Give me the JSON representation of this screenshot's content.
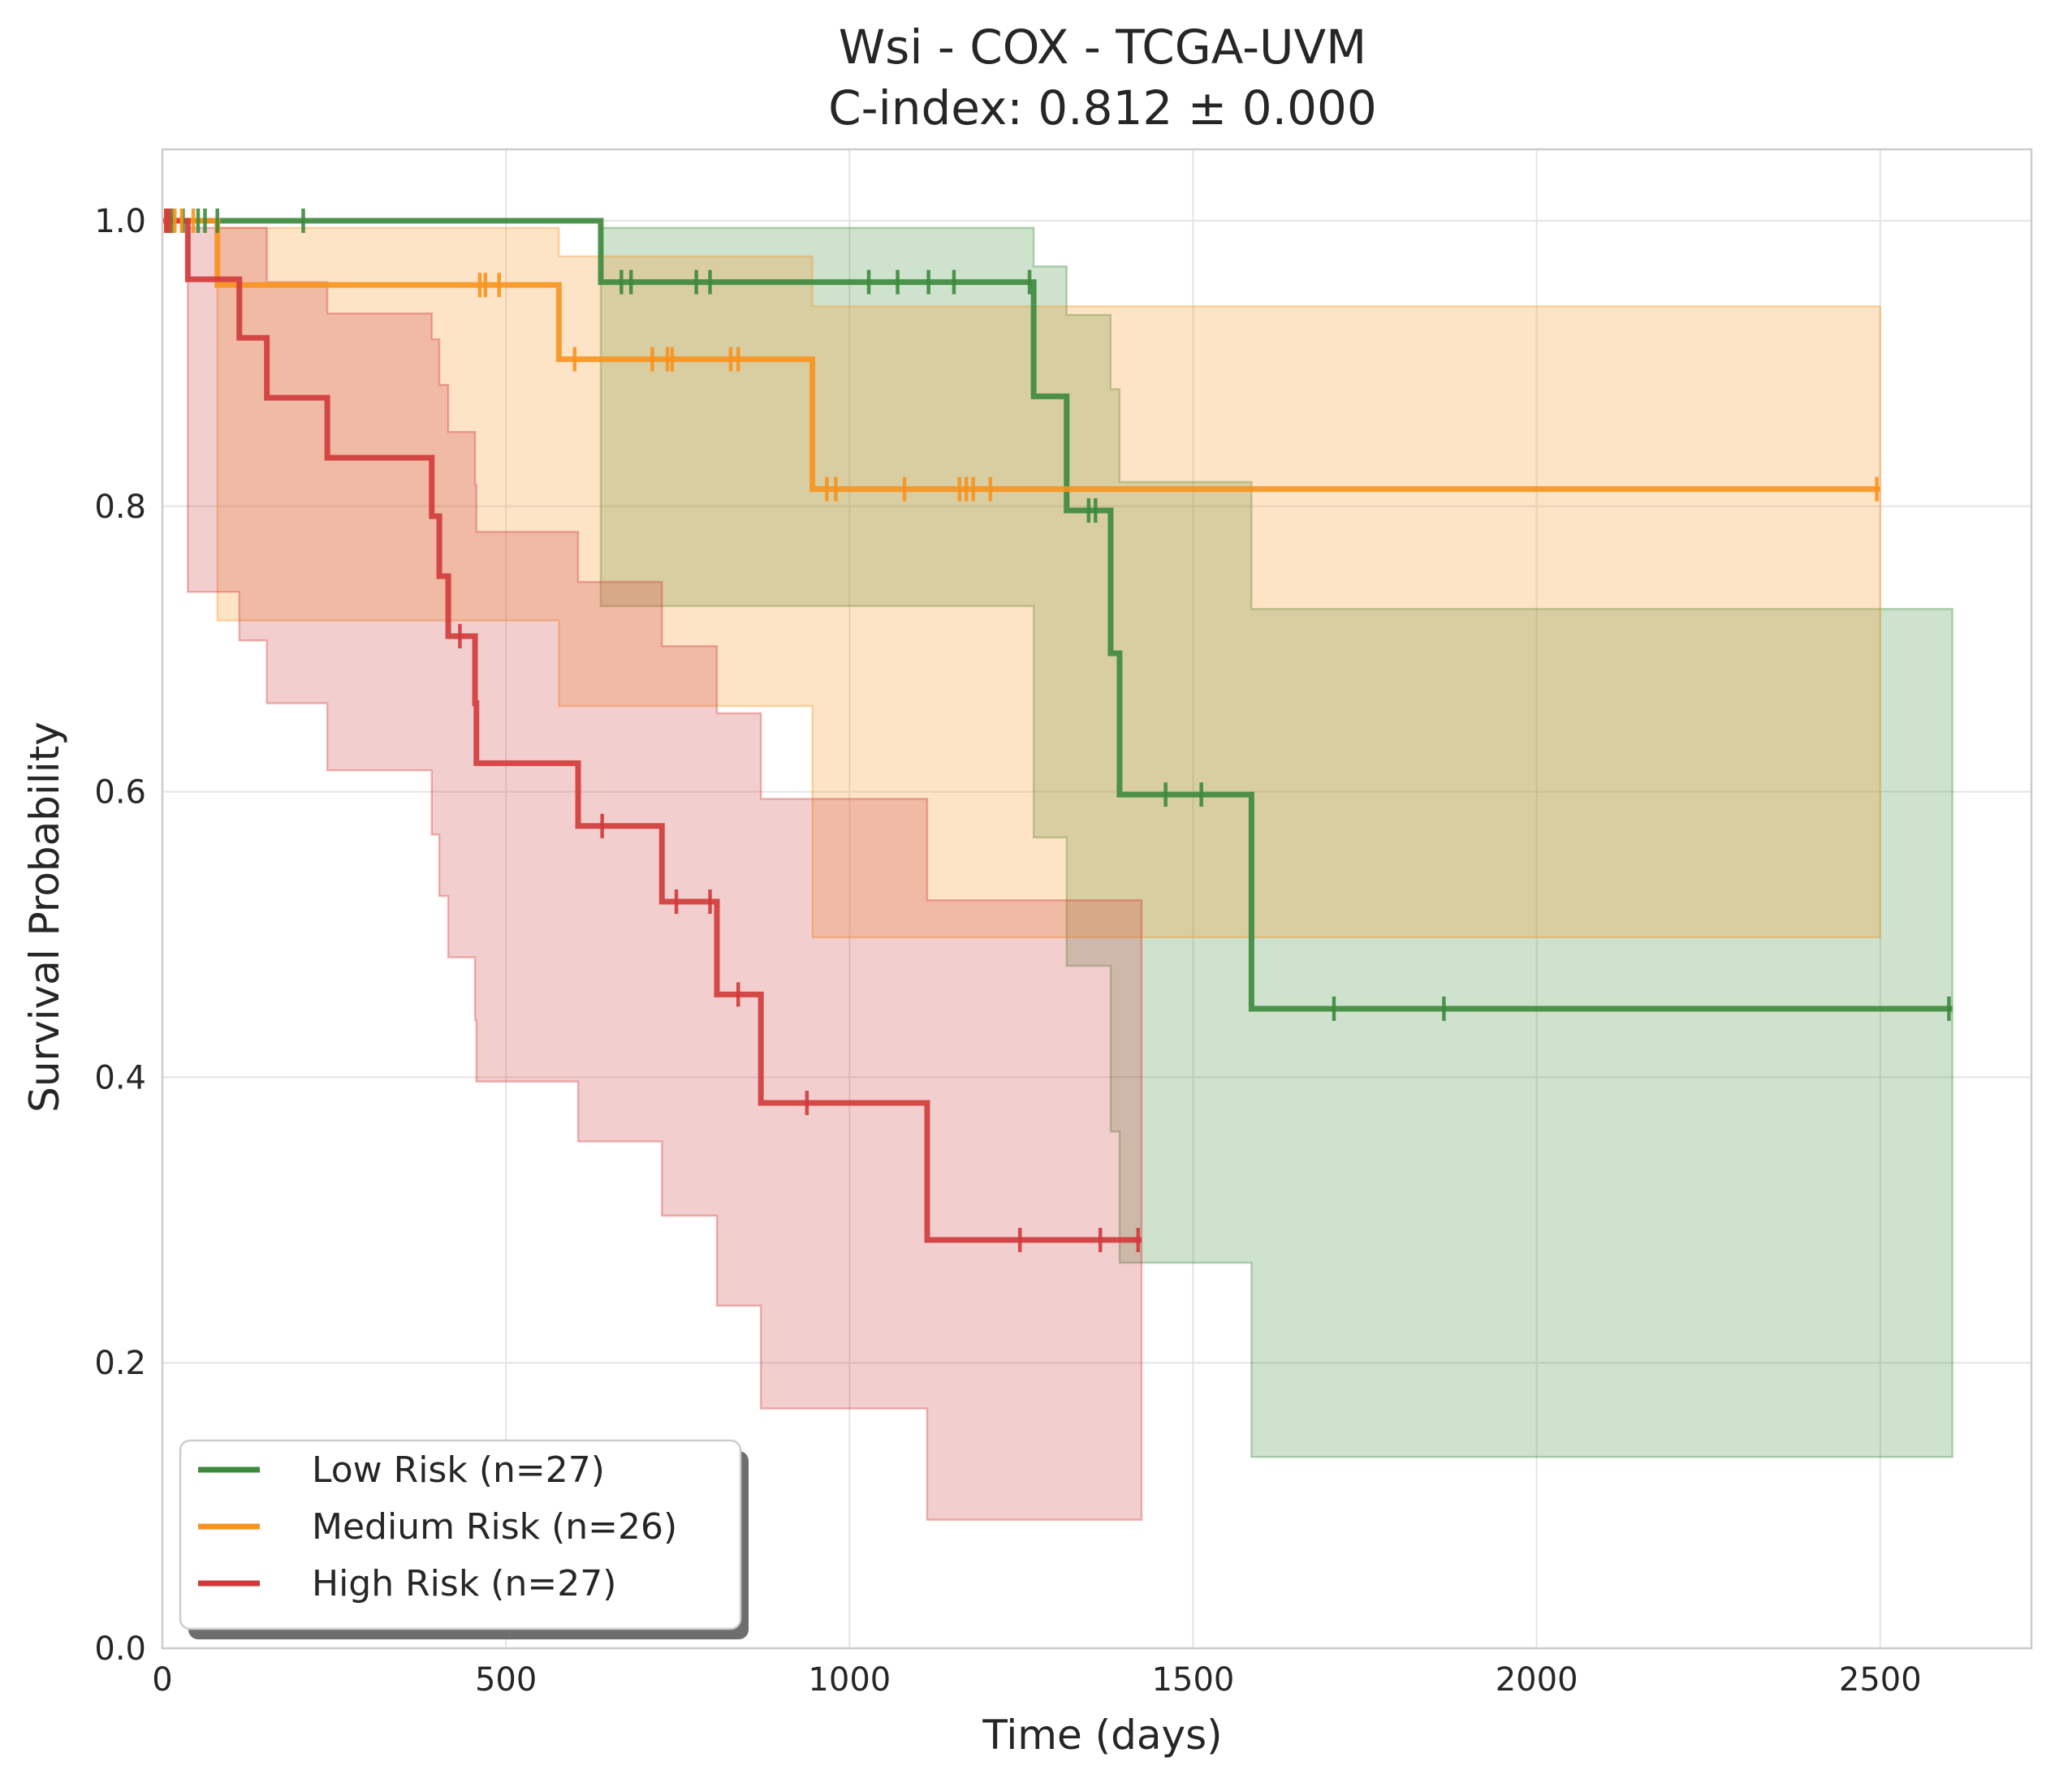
{
  "chart_data": {
    "type": "line",
    "subtype": "kaplan-meier",
    "title": "Wsi - COX - TCGA-UVM",
    "subtitle": "C-index: 0.812 ± 0.000",
    "xlabel": "Time (days)",
    "ylabel": "Survival Probability",
    "xlim": [
      0,
      2720
    ],
    "ylim": [
      0,
      1.05
    ],
    "xticks": [
      0,
      500,
      1000,
      1500,
      2000,
      2500
    ],
    "xtick_labels": [
      "0",
      "500",
      "1000",
      "1500",
      "2000",
      "2500"
    ],
    "yticks": [
      0.0,
      0.2,
      0.4,
      0.6,
      0.8,
      1.0
    ],
    "ytick_labels": [
      "0.0",
      "0.2",
      "0.4",
      "0.6",
      "0.8",
      "1.0"
    ],
    "grid": true,
    "legend_position": "lower-left",
    "series": [
      {
        "name": "Low Risk (n=27)",
        "color": "#3d8a3d",
        "steps": [
          [
            0,
            1.0
          ],
          [
            638,
            0.957
          ],
          [
            1268,
            0.877
          ],
          [
            1316,
            0.797
          ],
          [
            1380,
            0.697
          ],
          [
            1393,
            0.598
          ],
          [
            1585,
            0.448
          ],
          [
            2605,
            0.448
          ]
        ],
        "ci_lower": [
          [
            0,
            1.0
          ],
          [
            638,
            0.73
          ],
          [
            1268,
            0.568
          ],
          [
            1316,
            0.478
          ],
          [
            1380,
            0.362
          ],
          [
            1393,
            0.27
          ],
          [
            1585,
            0.134
          ],
          [
            2605,
            0.134
          ]
        ],
        "ci_upper": [
          [
            0,
            1.0
          ],
          [
            638,
            0.995
          ],
          [
            1268,
            0.968
          ],
          [
            1316,
            0.934
          ],
          [
            1380,
            0.882
          ],
          [
            1393,
            0.817
          ],
          [
            1585,
            0.728
          ],
          [
            2605,
            0.728
          ]
        ],
        "censor_times": [
          8,
          15,
          30,
          52,
          62,
          80,
          205,
          668,
          682,
          777,
          797,
          1028,
          1070,
          1115,
          1152,
          1262,
          1348,
          1358,
          1460,
          1512,
          1705,
          1865,
          2600
        ]
      },
      {
        "name": "Medium Risk (n=26)",
        "color": "#f7931e",
        "steps": [
          [
            0,
            1.0
          ],
          [
            80,
            0.955
          ],
          [
            577,
            0.903
          ],
          [
            946,
            0.812
          ],
          [
            2500,
            0.812
          ]
        ],
        "ci_lower": [
          [
            0,
            1.0
          ],
          [
            80,
            0.72
          ],
          [
            577,
            0.66
          ],
          [
            946,
            0.498
          ],
          [
            2500,
            0.498
          ]
        ],
        "ci_upper": [
          [
            0,
            1.0
          ],
          [
            80,
            0.995
          ],
          [
            577,
            0.975
          ],
          [
            946,
            0.94
          ],
          [
            2500,
            0.94
          ]
        ],
        "censor_times": [
          5,
          10,
          18,
          28,
          45,
          462,
          470,
          490,
          600,
          713,
          735,
          742,
          827,
          838,
          967,
          980,
          1080,
          1160,
          1170,
          1180,
          1205,
          2495
        ]
      },
      {
        "name": "High Risk (n=27)",
        "color": "#d03a3a",
        "steps": [
          [
            0,
            1.0
          ],
          [
            37,
            0.959
          ],
          [
            112,
            0.918
          ],
          [
            152,
            0.876
          ],
          [
            240,
            0.834
          ],
          [
            392,
            0.793
          ],
          [
            403,
            0.751
          ],
          [
            416,
            0.709
          ],
          [
            455,
            0.662
          ],
          [
            457,
            0.62
          ],
          [
            605,
            0.576
          ],
          [
            727,
            0.523
          ],
          [
            807,
            0.458
          ],
          [
            871,
            0.382
          ],
          [
            1113,
            0.286
          ],
          [
            1425,
            0.286
          ]
        ],
        "ci_lower": [
          [
            0,
            1.0
          ],
          [
            37,
            0.74
          ],
          [
            112,
            0.706
          ],
          [
            152,
            0.662
          ],
          [
            240,
            0.615
          ],
          [
            392,
            0.57
          ],
          [
            403,
            0.527
          ],
          [
            416,
            0.484
          ],
          [
            455,
            0.44
          ],
          [
            457,
            0.397
          ],
          [
            605,
            0.355
          ],
          [
            727,
            0.303
          ],
          [
            807,
            0.24
          ],
          [
            871,
            0.168
          ],
          [
            1113,
            0.09
          ],
          [
            1425,
            0.09
          ]
        ],
        "ci_upper": [
          [
            0,
            1.0
          ],
          [
            37,
            0.995
          ],
          [
            112,
            0.995
          ],
          [
            152,
            0.957
          ],
          [
            240,
            0.935
          ],
          [
            392,
            0.917
          ],
          [
            403,
            0.885
          ],
          [
            416,
            0.852
          ],
          [
            455,
            0.815
          ],
          [
            457,
            0.782
          ],
          [
            605,
            0.747
          ],
          [
            727,
            0.702
          ],
          [
            807,
            0.655
          ],
          [
            871,
            0.595
          ],
          [
            1113,
            0.524
          ],
          [
            1425,
            0.524
          ]
        ],
        "censor_times": [
          5,
          10,
          433,
          640,
          748,
          797,
          838,
          938,
          1248,
          1365,
          1420
        ]
      }
    ]
  }
}
